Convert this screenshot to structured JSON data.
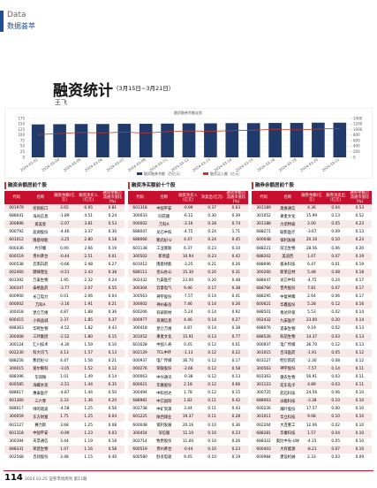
{
  "header": {
    "en": "Data",
    "zh": "数据荟萃"
  },
  "article": {
    "title": "融资统计",
    "period": "（3月15日~3月21日）",
    "author": "王飞"
  },
  "chart_data": {
    "type": "bar",
    "title": "融资融券余额走势",
    "categories": [
      "2024-03-01",
      "2024-03-04",
      "2024-03-05",
      "2024-03-06",
      "2024-03-07",
      "2024-03-08",
      "2024-03-11",
      "2024-03-12",
      "2024-03-13",
      "2024-03-14",
      "2024-03-15",
      "2024-03-18",
      "2024-03-19",
      "2024-03-20",
      "2024-03-21"
    ],
    "series": [
      {
        "name": "融资融券余额（百亿元）",
        "color": "#1f3a6b",
        "values": [
          148,
          149,
          150,
          150,
          151,
          151,
          152,
          153,
          153,
          154,
          154,
          155,
          155,
          156,
          156
        ]
      },
      {
        "name": "融资买入额（亿元）",
        "color": "#c0392b",
        "axis": "y2",
        "values": [
          820,
          860,
          900,
          880,
          910,
          870,
          930,
          950,
          940,
          960,
          980,
          1010,
          990,
          1020,
          1040
        ]
      }
    ],
    "ylim": [
      0,
      175
    ],
    "yticks": [
      0,
      25,
      50,
      75,
      100,
      125,
      150,
      175
    ],
    "y2lim": [
      0,
      1400
    ],
    "y2ticks": [
      0,
      200,
      400,
      600,
      800,
      1000,
      1200,
      1400
    ],
    "grid": true
  },
  "tables": [
    {
      "title": "融资余额居前个股",
      "columns": [
        "代码",
        "名称",
        "融资余额(亿元)",
        "融资净买入(亿元)",
        "融资余额占流通市值比(%)"
      ],
      "rows": [
        [
          "001979",
          "招商蛇口",
          "3.65",
          "6.95",
          "0.81"
        ],
        [
          "688041",
          "海光信息",
          "-1.89",
          "4.51",
          "0.24"
        ],
        [
          "300896",
          "爱美客",
          "-2.07",
          "3.81",
          "0.53"
        ],
        [
          "000792",
          "盐湖股份",
          "-4.46",
          "3.37",
          "0.30"
        ],
        [
          "601012",
          "隆基绿能",
          "-3.25",
          "2.80",
          "0.18"
        ],
        [
          "600436",
          "片仔癀",
          "0.00",
          "2.66",
          "0.19"
        ],
        [
          "600519",
          "贵州茅台",
          "-0.44",
          "2.51",
          "0.01"
        ],
        [
          "000538",
          "云南白药",
          "-0.66",
          "2.48",
          "0.27"
        ],
        [
          "002460",
          "赣锋锂业",
          "-0.51",
          "2.43",
          "0.38"
        ],
        [
          "603392",
          "万泰生物",
          "1.95",
          "2.32",
          "0.24"
        ],
        [
          "300347",
          "泰格医药",
          "-3.77",
          "2.07",
          "0.55"
        ],
        [
          "600900",
          "长江电力",
          "0.01",
          "2.06",
          "0.04"
        ],
        [
          "000002",
          "万科A",
          "-3.16",
          "1.91",
          "0.21"
        ],
        [
          "300418",
          "昆仑万维",
          "4.87",
          "1.88",
          "0.36"
        ],
        [
          "600415",
          "小商品城",
          "2.37",
          "1.85",
          "0.37"
        ],
        [
          "688363",
          "华熙生物",
          "-4.52",
          "1.82",
          "0.43"
        ],
        [
          "300408",
          "三环集团",
          "-2.52",
          "1.80",
          "0.15"
        ],
        [
          "300124",
          "汇川技术",
          "-4.30",
          "1.59",
          "0.10"
        ],
        [
          "002230",
          "科大讯飞",
          "4.13",
          "1.57",
          "0.13"
        ],
        [
          "688256",
          "寒武纪-U",
          "4.47",
          "1.56",
          "0.21"
        ],
        [
          "300015",
          "爱尔眼科",
          "-3.05",
          "1.52",
          "0.12"
        ],
        [
          "688396",
          "华润微",
          "1.01",
          "1.49",
          "0.14"
        ],
        [
          "600585",
          "海螺水泥",
          "-2.51",
          "1.44",
          "0.35"
        ],
        [
          "688617",
          "惠泰医疗",
          "-4.87",
          "1.44",
          "0.50"
        ],
        [
          "601360",
          "三六零",
          "2.33",
          "1.36",
          "0.20"
        ],
        [
          "688017",
          "绿的谐波",
          "-4.58",
          "1.25",
          "0.56"
        ],
        [
          "300059",
          "东方财富",
          "1.75",
          "1.25",
          "0.04"
        ],
        [
          "601127",
          "赛力斯",
          "3.68",
          "1.25",
          "0.08"
        ],
        [
          "601318",
          "中国平安",
          "-0.99",
          "1.23",
          "0.03"
        ],
        [
          "300394",
          "天孚通信",
          "3.44",
          "1.19",
          "0.18"
        ],
        [
          "688331",
          "荣昌生物",
          "1.07",
          "1.16",
          "0.58"
        ],
        [
          "002568",
          "百润股份",
          "3.48",
          "1.15",
          "0.40"
        ]
      ]
    },
    {
      "title": "融资净买额前十个股",
      "columns": [
        "代码",
        "名称",
        "融资净买入(亿元)",
        "净卖出(亿元)",
        "融资余额占流通市值比(%)"
      ],
      "rows": [
        [
          "601318",
          "中国平安",
          "-0.99",
          "0.37",
          "0.63"
        ],
        [
          "300033",
          "同花顺",
          "-6.12",
          "0.30",
          "0.39"
        ],
        [
          "000002",
          "万科A",
          "-3.16",
          "0.28",
          "0.74"
        ],
        [
          "688047",
          "龙芯中科",
          "-4.75",
          "0.24",
          "1.71"
        ],
        [
          "688066",
          "寒武纪-U",
          "4.47",
          "0.24",
          "0.45"
        ],
        [
          "601138",
          "工业富联",
          "6.37",
          "0.23",
          "0.10"
        ],
        [
          "300502",
          "新易盛",
          "10.94",
          "0.23",
          "0.42"
        ],
        [
          "601012",
          "隆基绿能",
          "-3.25",
          "0.21",
          "0.26"
        ],
        [
          "688111",
          "金山办公",
          "15.30",
          "0.20",
          "0.31"
        ],
        [
          "002432",
          "九安医疗",
          "23.00",
          "0.20",
          "0.48"
        ],
        [
          "300304",
          "云意电气",
          "9.46",
          "0.17",
          "0.38"
        ],
        [
          "300563",
          "神宇股份",
          "-7.57",
          "0.14",
          "0.41"
        ],
        [
          "300002",
          "神州泰岳",
          "7.46",
          "0.14",
          "0.26"
        ],
        [
          "600206",
          "有研新材",
          "-5.24",
          "0.14",
          "0.92"
        ],
        [
          "000977",
          "浪潮信息",
          "4.46",
          "0.14",
          "0.27"
        ],
        [
          "300418",
          "昆仑万维",
          "4.87",
          "0.14",
          "0.38"
        ],
        [
          "301052",
          "果麦文化",
          "15.91",
          "0.13",
          "0.77"
        ],
        [
          "601628",
          "中国人寿",
          "0.45",
          "0.12",
          "0.01"
        ],
        [
          "002129",
          "TCL中环",
          "-1.13",
          "0.12",
          "0.22"
        ],
        [
          "000937",
          "电广传媒",
          "36.70",
          "0.12",
          "0.17"
        ],
        [
          "000276",
          "荣联股份",
          "-2.66",
          "0.12",
          "0.58"
        ],
        [
          "000063",
          "中兴通讯",
          "-0.38",
          "0.12",
          "0.13"
        ],
        [
          "600021",
          "华嘉股份",
          "2.18",
          "0.12",
          "0.66"
        ],
        [
          "300494",
          "中科创达",
          "1.78",
          "0.12",
          "0.15"
        ],
        [
          "688981",
          "中芯国际",
          "1.82",
          "0.11",
          "0.42"
        ],
        [
          "002738",
          "中矿资源",
          "3.44",
          "0.11",
          "0.43"
        ],
        [
          "601225",
          "陕西煤业",
          "19.37",
          "0.11",
          "0.28"
        ],
        [
          "600048",
          "保利发展",
          "20.16",
          "0.10",
          "0.36"
        ],
        [
          "300454",
          "深信服",
          "11.10",
          "0.10",
          "0.23"
        ],
        [
          "002714",
          "牧原股份",
          "11.00",
          "0.10",
          "0.26"
        ],
        [
          "600519",
          "贵州茅台",
          "-0.44",
          "0.10",
          "0.23"
        ],
        [
          "600580",
          "卧龙电驱",
          "9.45",
          "0.10",
          "0.19"
        ]
      ]
    },
    {
      "title": "融券余额居前个股",
      "columns": [
        "代码",
        "名称",
        "融券余额(亿元)",
        "融券净卖出(亿元)",
        "融券余额占流通市值比(%)"
      ],
      "rows": [
        [
          "301189",
          "奥维通信",
          "4.36",
          "0.04",
          "0.53"
        ],
        [
          "301052",
          "果麦文化",
          "15.99",
          "0.13",
          "0.52"
        ],
        [
          "301188",
          "力诺特玻",
          "2.00",
          "0.05",
          "0.23"
        ],
        [
          "688271",
          "联影医疗",
          "-3.67",
          "0.09",
          "0.13"
        ],
        [
          "600048",
          "保利发展",
          "20.16",
          "0.10",
          "0.23"
        ],
        [
          "688221",
          "前沿生物",
          "28.56",
          "0.06",
          "0.20"
        ],
        [
          "688202",
          "美迪西",
          "1.07",
          "0.07",
          "0.19"
        ],
        [
          "688696",
          "极米科技",
          "6.47",
          "0.01",
          "0.19"
        ],
        [
          "300260",
          "新莱应材",
          "5.48",
          "0.08",
          "0.18"
        ],
        [
          "688047",
          "龙芯中科",
          "-4.75",
          "0.24",
          "0.17"
        ],
        [
          "688766",
          "普冉股份",
          "7.81",
          "0.07",
          "0.17"
        ],
        [
          "688295",
          "中复神鹰",
          "2.64",
          "0.06",
          "0.17"
        ],
        [
          "600621",
          "华鑫股份",
          "5.28",
          "0.12",
          "0.16"
        ],
        [
          "688501",
          "青达环保",
          "5.53",
          "0.02",
          "0.14"
        ],
        [
          "002432",
          "九安医疗",
          "23.00",
          "0.20",
          "0.14"
        ],
        [
          "688076",
          "诺泰生物",
          "9.19",
          "0.02",
          "0.13"
        ],
        [
          "688526",
          "科前生物",
          "14.37",
          "0.03",
          "0.13"
        ],
        [
          "000937",
          "电广传媒",
          "36.70",
          "0.12",
          "0.13"
        ],
        [
          "301015",
          "百洋医药",
          "-1.91",
          "0.05",
          "0.12"
        ],
        [
          "603127",
          "昭衍新药",
          "-2.30",
          "0.08",
          "0.12"
        ],
        [
          "300563",
          "神宇股份",
          "-7.57",
          "0.14",
          "0.11"
        ],
        [
          "603363",
          "傲农生物",
          "56.91",
          "0.03",
          "0.11"
        ],
        [
          "301123",
          "奕东电子",
          "4.89",
          "0.03",
          "0.11"
        ],
        [
          "300725",
          "药石科技",
          "24.56",
          "0.06",
          "0.10"
        ],
        [
          "688063",
          "派能科技",
          "-3.38",
          "0.10",
          "0.10"
        ],
        [
          "600226",
          "瀚叶股份",
          "17.57",
          "0.00",
          "0.10"
        ],
        [
          "301011",
          "华立科技",
          "9.08",
          "0.10",
          "0.10"
        ],
        [
          "002204",
          "大连重工",
          "12.06",
          "0.02",
          "0.10"
        ],
        [
          "688281",
          "华秦科技",
          "1.57",
          "0.04",
          "0.10"
        ],
        [
          "688322",
          "奥比中光-UW",
          "-4.15",
          "0.05",
          "0.10"
        ],
        [
          "600403",
          "大有能源",
          "-8.21",
          "0.07",
          "0.10"
        ],
        [
          "600984",
          "建设机械",
          "2.33",
          "0.03",
          "0.09"
        ]
      ]
    }
  ],
  "footer": {
    "page": "114",
    "issue": "2024.03.25 证券市场周刊 第11期"
  }
}
